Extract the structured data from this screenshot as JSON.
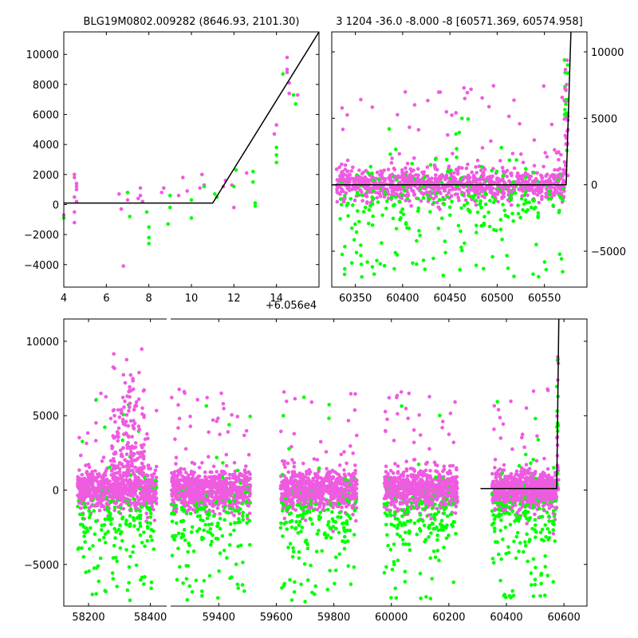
{
  "colors": {
    "magenta": "#ee5be0",
    "green": "#00ff00",
    "model": "#000000",
    "axis": "#000000"
  },
  "chart_data": [
    {
      "type": "scatter",
      "title": "BLG19M0802.009282 (8646.93, 2101.30)",
      "xlim": [
        4,
        16
      ],
      "ylim": [
        -5500,
        11500
      ],
      "x_offset_label": "+6.056e4",
      "xticks": [
        4,
        6,
        8,
        10,
        12,
        14
      ],
      "yticks": [
        -4000,
        -2000,
        0,
        2000,
        4000,
        6000,
        8000,
        10000
      ],
      "series": [
        {
          "color": "magenta",
          "points": [
            [
              4.0,
              -700
            ],
            [
              4.5,
              2000
            ],
            [
              4.5,
              1800
            ],
            [
              4.6,
              1400
            ],
            [
              4.6,
              1200
            ],
            [
              4.6,
              1000
            ],
            [
              4.5,
              500
            ],
            [
              4.6,
              200
            ],
            [
              4.5,
              -500
            ],
            [
              4.5,
              -1200
            ],
            [
              6.6,
              700
            ],
            [
              6.7,
              -300
            ],
            [
              6.8,
              -4100
            ],
            [
              7.0,
              300
            ],
            [
              7.5,
              400
            ],
            [
              7.6,
              600
            ],
            [
              7.7,
              200
            ],
            [
              7.6,
              1100
            ],
            [
              8.6,
              800
            ],
            [
              8.7,
              1100
            ],
            [
              9.4,
              600
            ],
            [
              9.6,
              1800
            ],
            [
              9.8,
              900
            ],
            [
              10.4,
              1100
            ],
            [
              10.5,
              2000
            ],
            [
              10.6,
              1300
            ],
            [
              11.5,
              1200
            ],
            [
              11.6,
              1600
            ],
            [
              11.9,
              1300
            ],
            [
              12.0,
              -200
            ],
            [
              12.6,
              2100
            ],
            [
              13.9,
              4700
            ],
            [
              14.0,
              5300
            ],
            [
              14.5,
              9800
            ],
            [
              14.5,
              9000
            ],
            [
              14.5,
              8800
            ],
            [
              14.6,
              8100
            ],
            [
              14.6,
              7400
            ],
            [
              15.0,
              7300
            ]
          ]
        },
        {
          "color": "green",
          "points": [
            [
              4.0,
              -900
            ],
            [
              7.0,
              800
            ],
            [
              7.1,
              -800
            ],
            [
              7.9,
              -500
            ],
            [
              8.0,
              -1500
            ],
            [
              8.0,
              -2200
            ],
            [
              8.0,
              -2600
            ],
            [
              8.9,
              -1300
            ],
            [
              9.0,
              600
            ],
            [
              9.0,
              -200
            ],
            [
              10.0,
              300
            ],
            [
              10.0,
              -900
            ],
            [
              10.6,
              1200
            ],
            [
              11.1,
              700
            ],
            [
              11.2,
              500
            ],
            [
              12.1,
              2300
            ],
            [
              12.0,
              1200
            ],
            [
              12.9,
              2200
            ],
            [
              12.9,
              1500
            ],
            [
              13.0,
              100
            ],
            [
              13.0,
              -100
            ],
            [
              14.0,
              3800
            ],
            [
              14.0,
              3300
            ],
            [
              14.0,
              2800
            ],
            [
              14.3,
              8700
            ],
            [
              14.8,
              7300
            ],
            [
              14.9,
              6700
            ]
          ]
        }
      ],
      "model": [
        [
          4,
          100
        ],
        [
          11,
          100
        ],
        [
          16,
          11500
        ]
      ]
    },
    {
      "type": "scatter",
      "title": "3 1204 -36.0 -8.000 -8 [60571.369, 60574.958]",
      "xlim": [
        60325,
        60595
      ],
      "ylim": [
        -7700,
        11500
      ],
      "xticks": [
        60350,
        60400,
        60450,
        60500,
        60550
      ],
      "yticks": [
        -5000,
        0,
        5000,
        10000
      ],
      "yaxis_side": "right",
      "model": [
        [
          60325,
          0
        ],
        [
          60573,
          0
        ],
        [
          60578,
          11500
        ]
      ]
    },
    {
      "type": "scatter",
      "xlim": [
        58120,
        60680
      ],
      "ylim": [
        -7800,
        11500
      ],
      "xticks": [
        58200,
        58400,
        59400,
        59600,
        59800,
        60000,
        60200,
        60400,
        60600
      ],
      "yticks": [
        -5000,
        0,
        5000,
        10000
      ],
      "broken_x_axis": true,
      "model": [
        [
          60310,
          100
        ],
        [
          60575,
          100
        ],
        [
          60582,
          11500
        ]
      ]
    }
  ]
}
